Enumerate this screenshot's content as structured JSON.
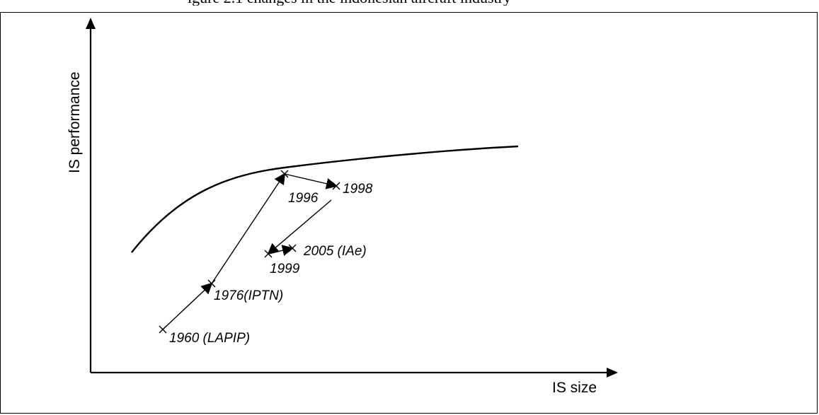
{
  "caption_text": "igure 2.1 changes in the indonesian aircraft industry",
  "axes": {
    "x_label": "IS size",
    "y_label": "IS performance"
  },
  "points": [
    {
      "id": "p1960",
      "label": "1960 (LAPIP)"
    },
    {
      "id": "p1976",
      "label": "1976(IPTN)"
    },
    {
      "id": "p1996",
      "label": "1996"
    },
    {
      "id": "p1998",
      "label": "1998"
    },
    {
      "id": "p1999",
      "label": "1999"
    },
    {
      "id": "p2005",
      "label": "2005 (IAe)"
    }
  ],
  "colors": {
    "line": "#000000",
    "background": "#ffffff"
  }
}
